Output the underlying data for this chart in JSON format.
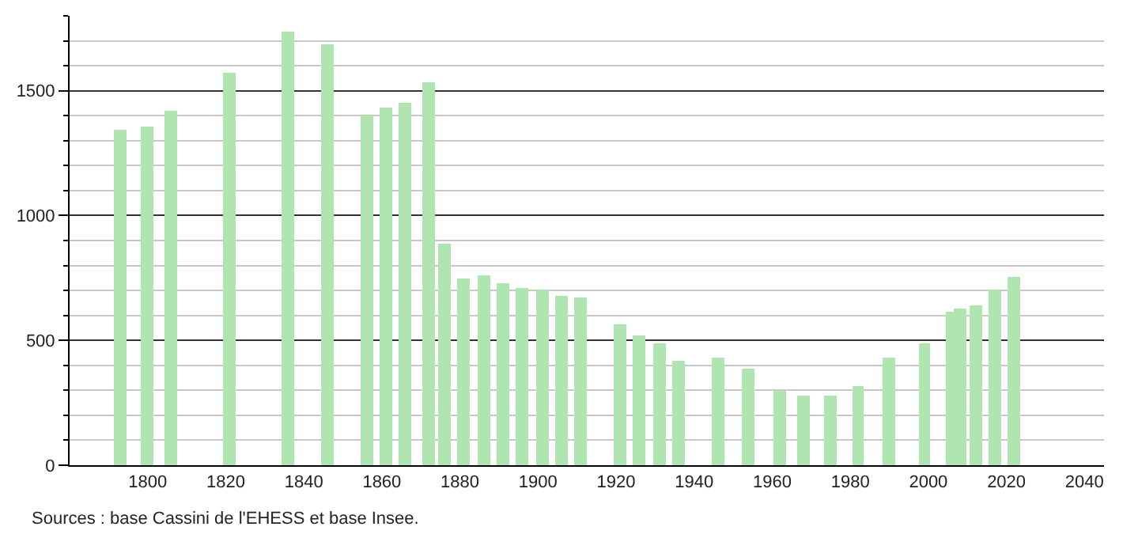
{
  "chart_data": {
    "type": "bar",
    "x": [
      1793,
      1800,
      1806,
      1821,
      1836,
      1846,
      1856,
      1861,
      1866,
      1872,
      1876,
      1881,
      1886,
      1891,
      1896,
      1901,
      1906,
      1911,
      1921,
      1926,
      1931,
      1936,
      1946,
      1954,
      1962,
      1968,
      1975,
      1982,
      1990,
      1999,
      2006,
      2008,
      2012,
      2017,
      2022
    ],
    "values": [
      1346,
      1359,
      1421,
      1575,
      1739,
      1689,
      1400,
      1434,
      1450,
      1533,
      885,
      748,
      760,
      729,
      711,
      702,
      678,
      669,
      565,
      519,
      490,
      418,
      433,
      389,
      299,
      276,
      276,
      314,
      433,
      490,
      615,
      628,
      640,
      703,
      753
    ],
    "color": "#b0e4b0",
    "xlim": [
      1780,
      2045
    ],
    "xticks": [
      1800,
      1820,
      1840,
      1860,
      1880,
      1900,
      1920,
      1940,
      1960,
      1980,
      2000,
      2020,
      2040
    ],
    "ylim": [
      0,
      1800
    ],
    "yticks": [
      0,
      500,
      1000,
      1500
    ],
    "grid": "y",
    "annotations": [
      "Sources : base Cassini de l'EHESS et base Insee."
    ]
  }
}
